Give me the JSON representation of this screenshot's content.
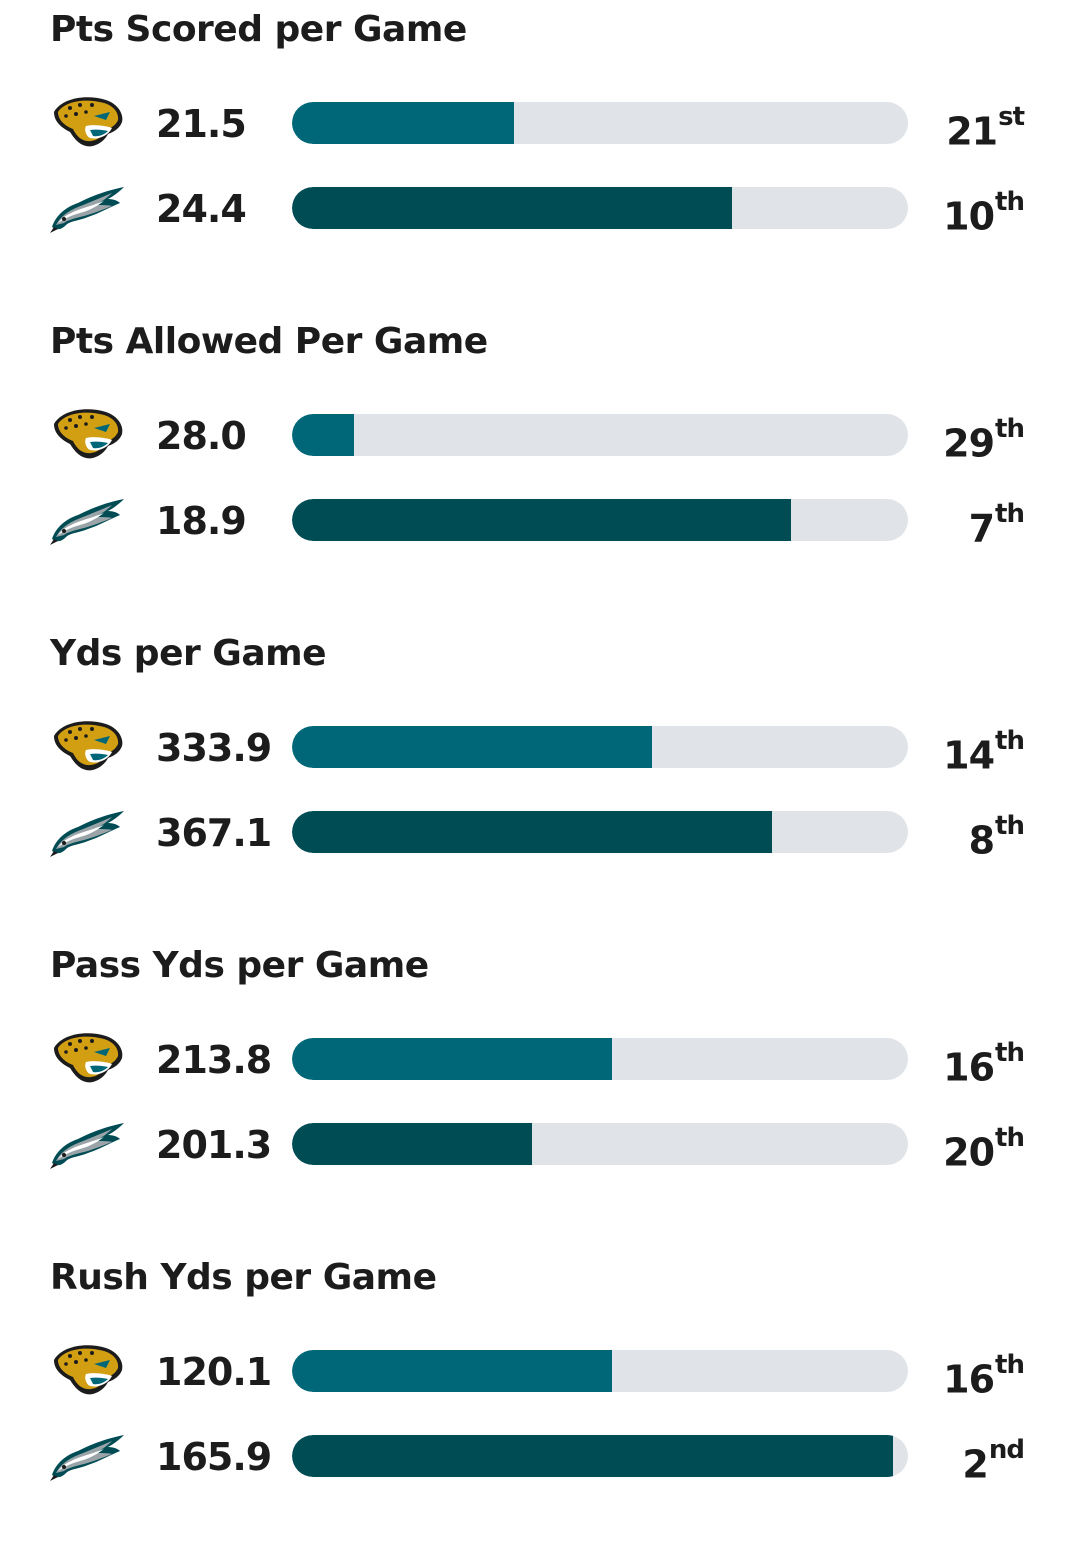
{
  "colors": {
    "jaguars": "#006778",
    "eagles": "#004c54",
    "track": "#e0e3e7"
  },
  "teams": [
    {
      "key": "jaguars",
      "icon": "jaguars-logo-icon"
    },
    {
      "key": "eagles",
      "icon": "eagles-logo-icon"
    }
  ],
  "chart_data": {
    "type": "bar",
    "orientation": "horizontal",
    "sections": [
      {
        "title": "Pts Scored per Game",
        "rows": [
          {
            "team": "jaguars",
            "value": "21.5",
            "rank_num": "21",
            "rank_suffix": "st",
            "fill": 0.36
          },
          {
            "team": "eagles",
            "value": "24.4",
            "rank_num": "10",
            "rank_suffix": "th",
            "fill": 0.715
          }
        ]
      },
      {
        "title": "Pts Allowed Per Game",
        "rows": [
          {
            "team": "jaguars",
            "value": "28.0",
            "rank_num": "29",
            "rank_suffix": "th",
            "fill": 0.1
          },
          {
            "team": "eagles",
            "value": "18.9",
            "rank_num": "7",
            "rank_suffix": "th",
            "fill": 0.81
          }
        ]
      },
      {
        "title": "Yds per Game",
        "rows": [
          {
            "team": "jaguars",
            "value": "333.9",
            "rank_num": "14",
            "rank_suffix": "th",
            "fill": 0.585
          },
          {
            "team": "eagles",
            "value": "367.1",
            "rank_num": "8",
            "rank_suffix": "th",
            "fill": 0.78
          }
        ]
      },
      {
        "title": "Pass Yds per Game",
        "rows": [
          {
            "team": "jaguars",
            "value": "213.8",
            "rank_num": "16",
            "rank_suffix": "th",
            "fill": 0.52
          },
          {
            "team": "eagles",
            "value": "201.3",
            "rank_num": "20",
            "rank_suffix": "th",
            "fill": 0.39
          }
        ]
      },
      {
        "title": "Rush Yds per Game",
        "rows": [
          {
            "team": "jaguars",
            "value": "120.1",
            "rank_num": "16",
            "rank_suffix": "th",
            "fill": 0.52
          },
          {
            "team": "eagles",
            "value": "165.9",
            "rank_num": "2",
            "rank_suffix": "nd",
            "fill": 0.975
          }
        ]
      }
    ]
  }
}
